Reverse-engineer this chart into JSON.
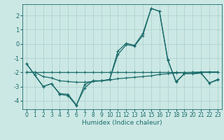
{
  "xlabel": "Humidex (Indice chaleur)",
  "xlim": [
    -0.5,
    23.5
  ],
  "ylim": [
    -4.6,
    2.8
  ],
  "yticks": [
    -4,
    -3,
    -2,
    -1,
    0,
    1,
    2
  ],
  "xticks": [
    0,
    1,
    2,
    3,
    4,
    5,
    6,
    7,
    8,
    9,
    10,
    11,
    12,
    13,
    14,
    15,
    16,
    17,
    18,
    19,
    20,
    21,
    22,
    23
  ],
  "bg_color": "#cce8e4",
  "grid_color": "#aacfcc",
  "line_color": "#1a6b6b",
  "lines": [
    [
      -1.4,
      -2.2,
      -3.0,
      -2.8,
      -3.5,
      -3.55,
      -4.3,
      -3.1,
      -2.6,
      -2.6,
      -2.5,
      -0.75,
      -0.05,
      -0.15,
      0.6,
      2.5,
      2.3,
      -1.1,
      -2.7,
      -2.1,
      -2.1,
      -2.05,
      -2.75,
      -2.55
    ],
    [
      -1.4,
      -2.2,
      -3.0,
      -2.8,
      -3.55,
      -3.65,
      -4.35,
      -2.85,
      -2.6,
      -2.6,
      -2.5,
      -0.5,
      0.05,
      -0.1,
      0.75,
      2.5,
      2.3,
      -1.15,
      -2.65,
      -2.1,
      -2.1,
      -2.05,
      -2.75,
      -2.5
    ],
    [
      -2.0,
      -2.0,
      -2.0,
      -2.0,
      -2.0,
      -2.0,
      -2.0,
      -2.0,
      -2.0,
      -2.0,
      -2.0,
      -2.0,
      -2.0,
      -2.0,
      -2.0,
      -2.0,
      -2.0,
      -2.0,
      -2.0,
      -2.0,
      -2.0,
      -2.0,
      -2.0,
      -2.0
    ],
    [
      -2.0,
      -2.0,
      -2.3,
      -2.4,
      -2.6,
      -2.65,
      -2.7,
      -2.7,
      -2.65,
      -2.6,
      -2.55,
      -2.45,
      -2.4,
      -2.35,
      -2.3,
      -2.25,
      -2.15,
      -2.1,
      -2.05,
      -2.02,
      -2.0,
      -1.98,
      -1.97,
      -1.97
    ]
  ]
}
